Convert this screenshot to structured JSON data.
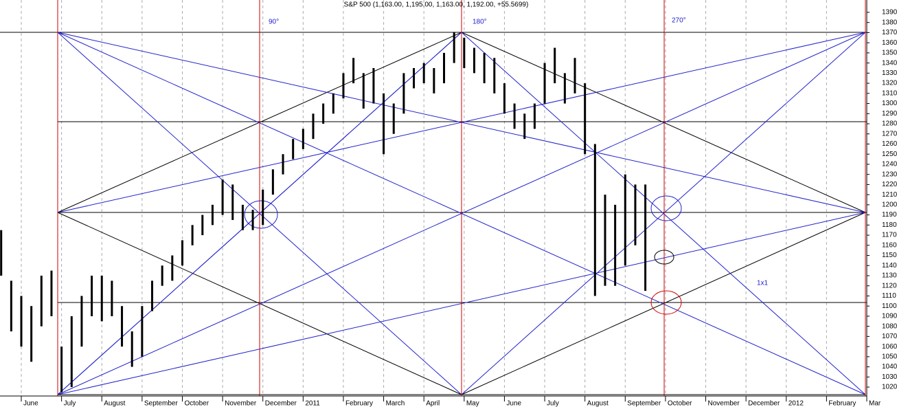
{
  "chart_data": {
    "type": "hilo",
    "title": "S&P 500 (1,163.00, 1,195.00, 1,163.00, 1,192.00, +55.5699)",
    "annotations": [
      "90°",
      "180°",
      "270°",
      "1x1"
    ],
    "color": "#000000",
    "xlim": [
      -0.529,
      21.0
    ],
    "xticks": [
      {
        "value": 0,
        "label": "June"
      },
      {
        "value": 1,
        "label": "July"
      },
      {
        "value": 2,
        "label": "August"
      },
      {
        "value": 3,
        "label": "September"
      },
      {
        "value": 4,
        "label": "October"
      },
      {
        "value": 5,
        "label": "November"
      },
      {
        "value": 6,
        "label": "December"
      },
      {
        "value": 7,
        "label": "2011"
      },
      {
        "value": 8,
        "label": "February"
      },
      {
        "value": 9,
        "label": "March"
      },
      {
        "value": 10,
        "label": "April"
      },
      {
        "value": 11,
        "label": "May"
      },
      {
        "value": 12,
        "label": "June"
      },
      {
        "value": 13,
        "label": "July"
      },
      {
        "value": 14,
        "label": "August"
      },
      {
        "value": 15,
        "label": "September"
      },
      {
        "value": 16,
        "label": "October"
      },
      {
        "value": 17,
        "label": "November"
      },
      {
        "value": 18,
        "label": "December"
      },
      {
        "value": 19,
        "label": "2012"
      },
      {
        "value": 20,
        "label": "February"
      },
      {
        "value": 21,
        "label": "Mar"
      }
    ],
    "ylim": [
      1011.2,
      1402.2
    ],
    "yticks": [
      1020,
      1030,
      1040,
      1050,
      1060,
      1070,
      1080,
      1090,
      1100,
      1110,
      1120,
      1130,
      1140,
      1150,
      1160,
      1170,
      1180,
      1190,
      1200,
      1210,
      1220,
      1230,
      1240,
      1250,
      1260,
      1270,
      1280,
      1290,
      1300,
      1310,
      1320,
      1330,
      1340,
      1350,
      1360,
      1370,
      1380,
      1390
    ],
    "x": [
      -0.5,
      -0.25,
      0,
      0.25,
      0.5,
      0.75,
      1,
      1.25,
      1.5,
      1.75,
      2,
      2.25,
      2.5,
      2.75,
      3,
      3.25,
      3.5,
      3.75,
      4,
      4.25,
      4.5,
      4.75,
      5,
      5.25,
      5.5,
      5.75,
      6,
      6.25,
      6.5,
      6.75,
      7,
      7.25,
      7.5,
      7.75,
      8,
      8.25,
      8.5,
      8.75,
      9,
      9.25,
      9.5,
      9.75,
      10,
      10.25,
      10.5,
      10.75,
      11,
      11.25,
      11.5,
      11.75,
      12,
      12.25,
      12.5,
      12.75,
      13,
      13.25,
      13.5,
      13.75,
      14,
      14.25,
      14.5,
      14.75,
      15,
      15.25,
      15.5
    ],
    "high": [
      1175,
      1125,
      1110,
      1100,
      1130,
      1135,
      1060,
      1090,
      1110,
      1130,
      1130,
      1125,
      1100,
      1075,
      1100,
      1125,
      1140,
      1150,
      1165,
      1180,
      1190,
      1200,
      1225,
      1220,
      1200,
      1195,
      1215,
      1235,
      1250,
      1265,
      1275,
      1290,
      1300,
      1310,
      1330,
      1345,
      1330,
      1335,
      1310,
      1300,
      1330,
      1335,
      1340,
      1335,
      1350,
      1370,
      1365,
      1355,
      1350,
      1345,
      1320,
      1300,
      1290,
      1300,
      1340,
      1355,
      1330,
      1345,
      1320,
      1260,
      1210,
      1200,
      1230,
      1220,
      1220
    ],
    "low": [
      1130,
      1075,
      1060,
      1045,
      1080,
      1090,
      1015,
      1020,
      1060,
      1090,
      1085,
      1090,
      1060,
      1040,
      1050,
      1095,
      1120,
      1125,
      1140,
      1160,
      1170,
      1180,
      1190,
      1185,
      1175,
      1175,
      1180,
      1210,
      1230,
      1245,
      1255,
      1265,
      1280,
      1290,
      1305,
      1320,
      1295,
      1300,
      1250,
      1270,
      1290,
      1315,
      1320,
      1310,
      1320,
      1340,
      1335,
      1330,
      1320,
      1310,
      1290,
      1275,
      1265,
      1275,
      1300,
      1320,
      1300,
      1310,
      1250,
      1110,
      1120,
      1120,
      1140,
      1160,
      1115
    ]
  }
}
